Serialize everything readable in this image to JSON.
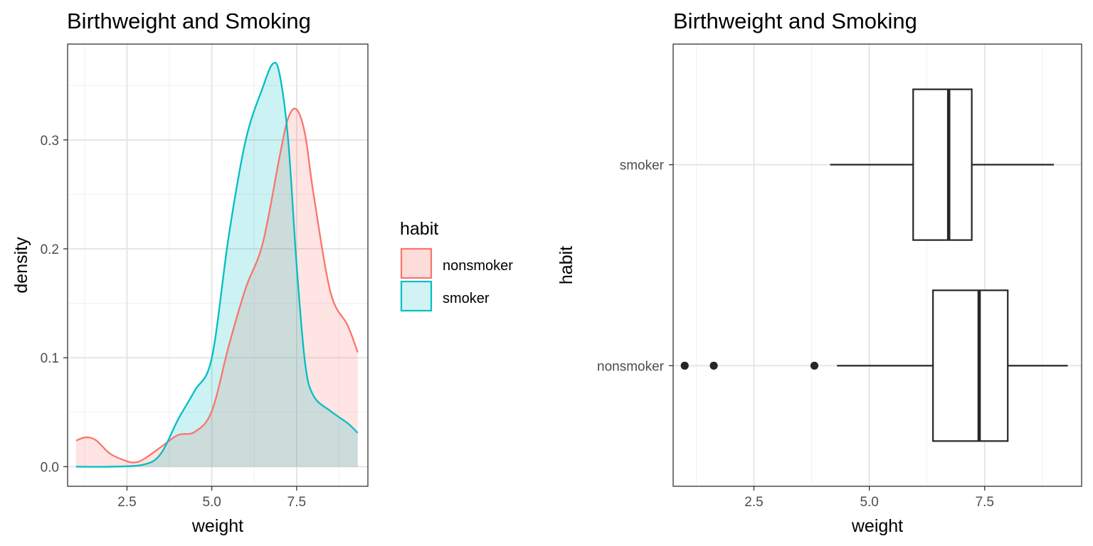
{
  "chart_data": [
    {
      "type": "area",
      "subtype": "density",
      "title": "Birthweight and Smoking",
      "xlabel": "weight",
      "ylabel": "density",
      "xlim": [
        0.75,
        9.6
      ],
      "ylim": [
        -0.018,
        0.388
      ],
      "xticks": [
        2.5,
        5.0,
        7.5
      ],
      "xtick_labels": [
        "2.5",
        "5.0",
        "7.5"
      ],
      "yticks": [
        0.0,
        0.1,
        0.2,
        0.3
      ],
      "ytick_labels": [
        "0.0",
        "0.1",
        "0.2",
        "0.3"
      ],
      "grid": true,
      "legend": {
        "title": "habit",
        "position": "right"
      },
      "series": [
        {
          "name": "nonsmoker",
          "color": "#F8766D",
          "fill": "#F8766D",
          "x": [
            1.0,
            1.3,
            1.6,
            2.0,
            2.5,
            2.75,
            3.0,
            3.5,
            4.0,
            4.5,
            5.0,
            5.5,
            6.0,
            6.5,
            7.0,
            7.25,
            7.5,
            7.75,
            8.0,
            8.5,
            9.0,
            9.3
          ],
          "y": [
            0.024,
            0.027,
            0.024,
            0.012,
            0.005,
            0.004,
            0.007,
            0.018,
            0.029,
            0.032,
            0.051,
            0.111,
            0.164,
            0.205,
            0.285,
            0.32,
            0.328,
            0.305,
            0.25,
            0.16,
            0.13,
            0.105
          ]
        },
        {
          "name": "smoker",
          "color": "#00BFC4",
          "fill": "#00BFC4",
          "x": [
            1.0,
            2.0,
            3.0,
            3.5,
            4.0,
            4.5,
            5.0,
            5.5,
            6.0,
            6.5,
            6.8,
            7.0,
            7.25,
            7.5,
            7.75,
            8.0,
            8.5,
            9.0,
            9.3
          ],
          "y": [
            0.0,
            0.0,
            0.002,
            0.012,
            0.043,
            0.07,
            0.1,
            0.212,
            0.3,
            0.348,
            0.37,
            0.36,
            0.3,
            0.185,
            0.095,
            0.065,
            0.051,
            0.04,
            0.031
          ]
        }
      ]
    },
    {
      "type": "box",
      "title": "Birthweight and Smoking",
      "xlabel": "weight",
      "ylabel": "habit",
      "xlim": [
        0.75,
        9.6
      ],
      "xticks": [
        2.5,
        5.0,
        7.5
      ],
      "xtick_labels": [
        "2.5",
        "5.0",
        "7.5"
      ],
      "categories": [
        "smoker",
        "nonsmoker"
      ],
      "grid": true,
      "boxes": [
        {
          "category": "smoker",
          "whisker_low": 4.15,
          "q1": 5.95,
          "median": 6.72,
          "q3": 7.22,
          "whisker_high": 9.0,
          "outliers": []
        },
        {
          "category": "nonsmoker",
          "whisker_low": 4.3,
          "q1": 6.38,
          "median": 7.38,
          "q3": 8.0,
          "whisker_high": 9.3,
          "outliers": [
            1.0,
            1.63,
            3.81
          ]
        }
      ]
    }
  ]
}
